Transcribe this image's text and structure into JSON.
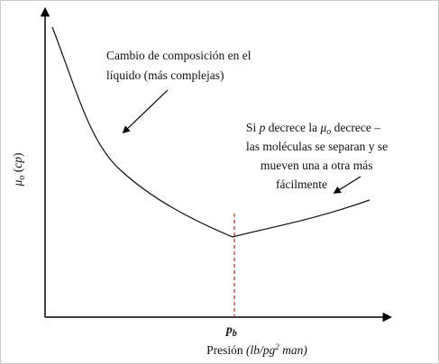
{
  "y_label": {
    "symbol": "μ",
    "subscript": "o",
    "open": " (",
    "unit": "cp",
    "close": ")"
  },
  "x_label": {
    "text": "Presión ",
    "unit": "(lb/pg",
    "superscript": "2",
    "unit_end": " man)"
  },
  "x_marker": {
    "symbol": "p",
    "subscript": "b"
  },
  "annotations": [
    {
      "lines": [
        "Cambio de composición en el",
        "líquido (más complejas)"
      ]
    },
    {
      "first_line": [
        "Si ",
        "p",
        " decrece la ",
        "μ",
        "o",
        " decrece –"
      ],
      "lines": [
        "las moléculas se separan y se",
        "mueven una a otra más",
        "fácilmente"
      ]
    }
  ]
}
